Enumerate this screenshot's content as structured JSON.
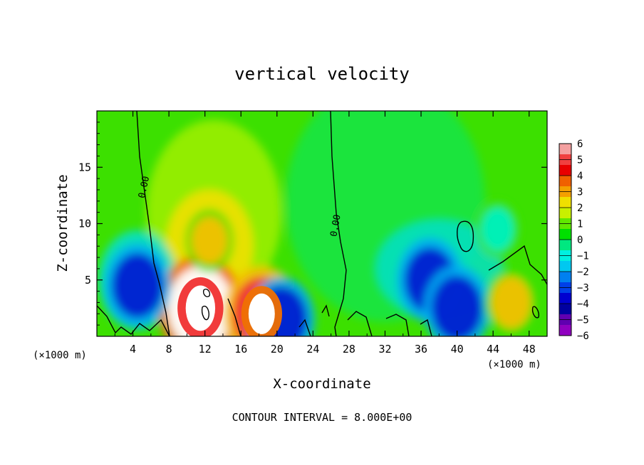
{
  "chart_data": {
    "type": "heatmap",
    "title": "vertical velocity",
    "xlabel": "X-coordinate",
    "ylabel": "Z-coordinate",
    "x_unit_left": "(×1000 m)",
    "x_unit_right": "(×1000 m)",
    "x_ticks": [
      4,
      8,
      12,
      16,
      20,
      24,
      28,
      32,
      36,
      40,
      44,
      48
    ],
    "y_ticks": [
      5,
      10,
      15
    ],
    "xlim": [
      0,
      50
    ],
    "ylim": [
      0,
      20
    ],
    "footer": "CONTOUR INTERVAL = 8.000E+00",
    "contour_label": "0.00",
    "colorbar": {
      "ticks": [
        "6",
        "5",
        "4",
        "3",
        "2",
        "1",
        "0",
        "−1",
        "−2",
        "−3",
        "−4",
        "−5",
        "−6"
      ],
      "colors": [
        "#f4a0a0",
        "#f04040",
        "#e80000",
        "#f06000",
        "#f4a000",
        "#f0e000",
        "#c8f000",
        "#60e800",
        "#00e000",
        "#00e880",
        "#00f0e0",
        "#00c8f0",
        "#0080f0",
        "#0040e8",
        "#0000d0",
        "#0000a0",
        "#6000b0",
        "#9000c0"
      ]
    },
    "features": [
      {
        "type": "updraft",
        "x": 11.5,
        "z": 2.5,
        "w": 6
      },
      {
        "type": "updraft",
        "x": 18.3,
        "z": 2.0,
        "w": 5
      },
      {
        "type": "updraft",
        "x": 12.5,
        "z": 8.5,
        "w": 2
      },
      {
        "type": "downdraft",
        "x": 4.5,
        "z": 4.5,
        "w": -4
      },
      {
        "type": "downdraft",
        "x": 37.0,
        "z": 5.0,
        "w": -4
      },
      {
        "type": "downdraft",
        "x": 40.0,
        "z": 2.5,
        "w": -4
      },
      {
        "type": "downdraft",
        "x": 20.5,
        "z": 1.5,
        "w": -4
      },
      {
        "type": "downdraft",
        "x": 44.5,
        "z": 9.5,
        "w": -1.5
      },
      {
        "type": "updraft",
        "x": 46.0,
        "z": 3.0,
        "w": 2.5
      }
    ]
  }
}
